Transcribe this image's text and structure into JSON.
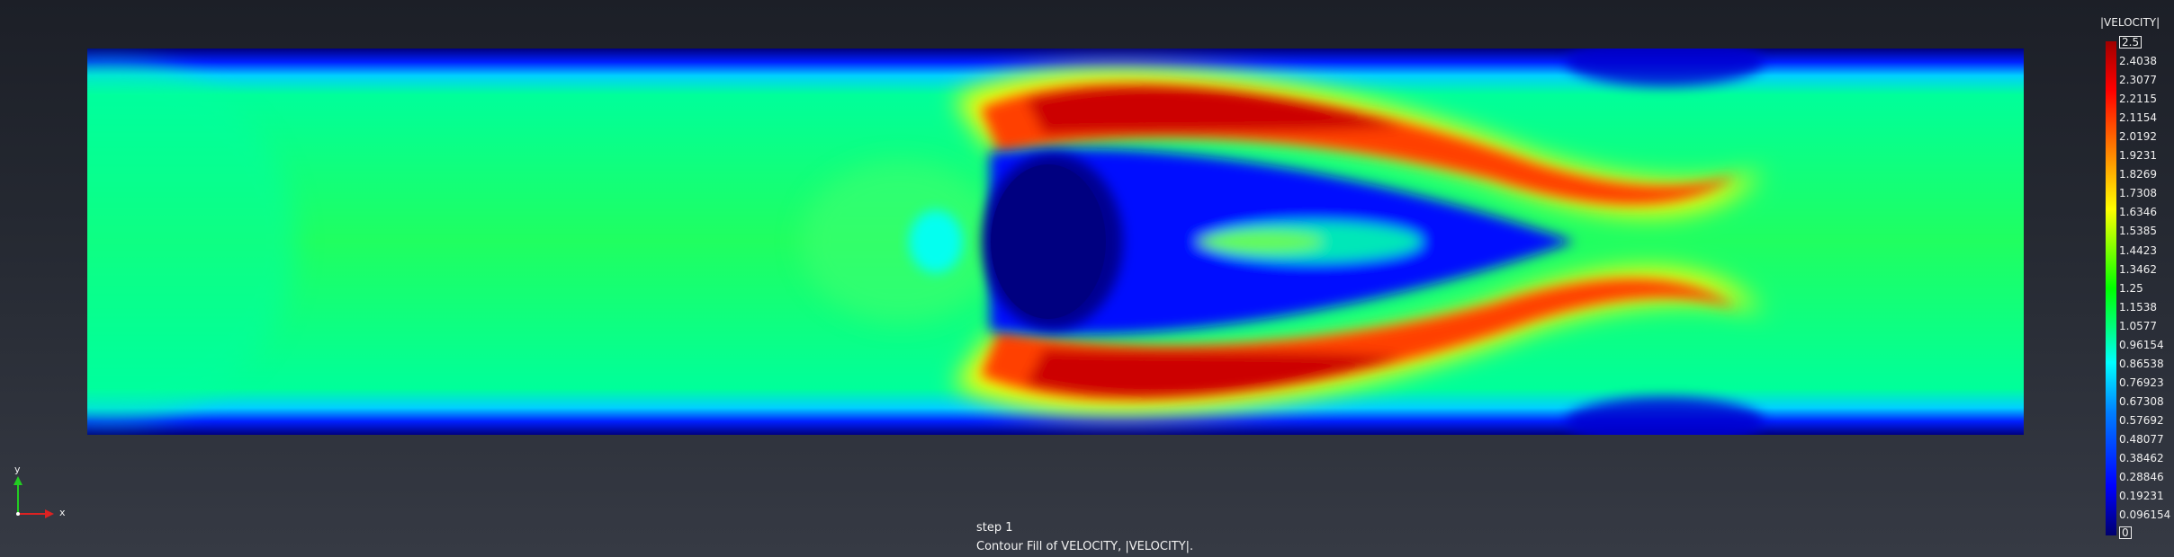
{
  "viewer": {
    "step_label": "step 1",
    "caption": "Contour Fill of VELOCITY, |VELOCITY|."
  },
  "axes": {
    "x_label": "x",
    "y_label": "y"
  },
  "legend": {
    "title": "|VELOCITY|",
    "max_value": "2.5",
    "min_value": "0",
    "ticks": [
      "2.4038",
      "2.3077",
      "2.2115",
      "2.1154",
      "2.0192",
      "1.9231",
      "1.8269",
      "1.7308",
      "1.6346",
      "1.5385",
      "1.4423",
      "1.3462",
      "1.25",
      "1.1538",
      "1.0577",
      "0.96154",
      "0.86538",
      "0.76923",
      "0.67308",
      "0.57692",
      "0.48077",
      "0.38462",
      "0.28846",
      "0.19231",
      "0.096154"
    ]
  },
  "colors": {
    "background_top": "#1c1f27",
    "background_bottom": "#363a44",
    "colormap": [
      "#00006e",
      "#0000ff",
      "#0080ff",
      "#00ffff",
      "#00ff80",
      "#00ff00",
      "#80ff00",
      "#ffff00",
      "#ff8000",
      "#ff0000",
      "#a00000"
    ]
  }
}
